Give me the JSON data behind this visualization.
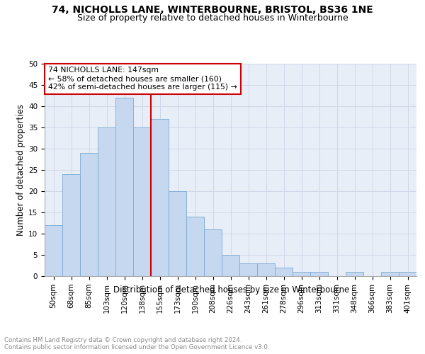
{
  "title": "74, NICHOLLS LANE, WINTERBOURNE, BRISTOL, BS36 1NE",
  "subtitle": "Size of property relative to detached houses in Winterbourne",
  "xlabel": "Distribution of detached houses by size in Winterbourne",
  "ylabel": "Number of detached properties",
  "categories": [
    "50sqm",
    "68sqm",
    "85sqm",
    "103sqm",
    "120sqm",
    "138sqm",
    "155sqm",
    "173sqm",
    "190sqm",
    "208sqm",
    "226sqm",
    "243sqm",
    "261sqm",
    "278sqm",
    "296sqm",
    "313sqm",
    "331sqm",
    "348sqm",
    "366sqm",
    "383sqm",
    "401sqm"
  ],
  "values": [
    12,
    24,
    29,
    35,
    42,
    35,
    37,
    20,
    14,
    11,
    5,
    3,
    3,
    2,
    1,
    1,
    0,
    1,
    0,
    1,
    1
  ],
  "bar_color": "#c5d8f0",
  "bar_edge_color": "#7baad4",
  "vline_x": 5.5,
  "vline_color": "#cc0000",
  "annotation_title": "74 NICHOLLS LANE: 147sqm",
  "annotation_line2": "← 58% of detached houses are smaller (160)",
  "annotation_line3": "42% of semi-detached houses are larger (115) →",
  "annotation_box_color": "#cc0000",
  "annotation_bg": "#ffffff",
  "ylim": [
    0,
    50
  ],
  "yticks": [
    0,
    5,
    10,
    15,
    20,
    25,
    30,
    35,
    40,
    45,
    50
  ],
  "grid_color": "#d0d8e8",
  "bg_color": "#e8eef8",
  "footer1": "Contains HM Land Registry data © Crown copyright and database right 2024.",
  "footer2": "Contains public sector information licensed under the Open Government Licence v3.0.",
  "title_fontsize": 10,
  "subtitle_fontsize": 9,
  "axis_label_fontsize": 8.5,
  "tick_fontsize": 7.5,
  "footer_fontsize": 6.2
}
